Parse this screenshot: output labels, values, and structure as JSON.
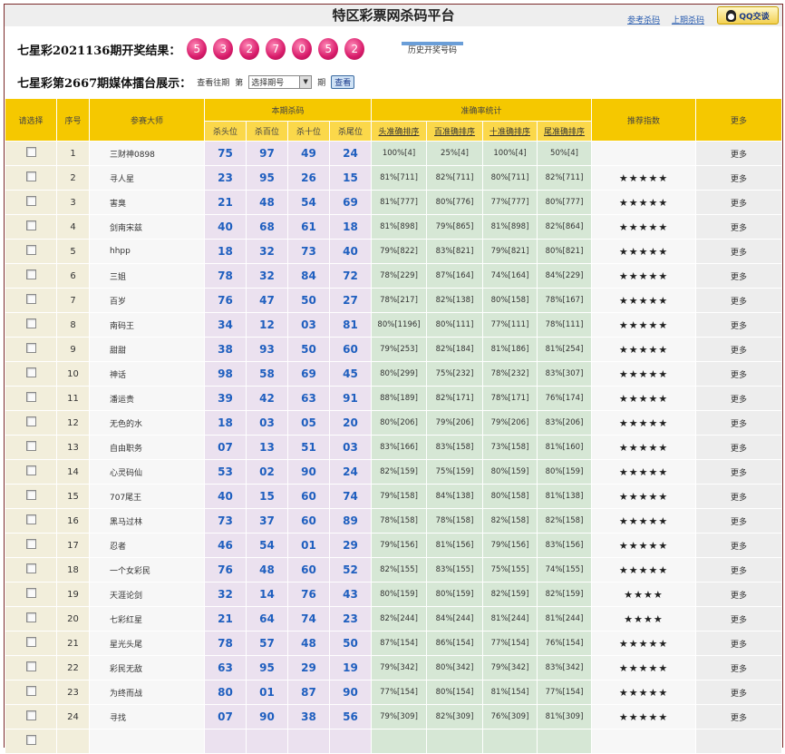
{
  "header": {
    "title": "特区彩票网杀码平台",
    "links": [
      "参考杀码",
      "上期杀码"
    ],
    "qq_label": "QQ交谈"
  },
  "result": {
    "label": "七星彩2021136期开奖结果：",
    "balls": [
      "5",
      "3",
      "2",
      "7",
      "0",
      "5",
      "2"
    ],
    "history_label": "历史开奖号码"
  },
  "selector": {
    "label": "七星彩第2667期媒体擂台展示：",
    "view_past": "查看往期",
    "di": "第",
    "select_value": "选择期号",
    "qi": "期",
    "query_button": "查看"
  },
  "table": {
    "group_headers": {
      "check": "请选择",
      "no": "序号",
      "master": "参赛大师",
      "kill": "本期杀码",
      "acc": "准确率统计",
      "rec": "推荐指数",
      "more": "更多"
    },
    "sub_headers": [
      "杀头位",
      "杀百位",
      "杀十位",
      "杀尾位",
      "头准确排序",
      "百准确排序",
      "十准确排序",
      "尾准确排序"
    ],
    "rows": [
      {
        "no": "1",
        "name": "三财神0898",
        "k": [
          "75",
          "97",
          "49",
          "24"
        ],
        "s": [
          "100%[4]",
          "25%[4]",
          "100%[4]",
          "50%[4]"
        ],
        "stars": "",
        "more": "更多"
      },
      {
        "no": "2",
        "name": "寻人星",
        "k": [
          "23",
          "95",
          "26",
          "15"
        ],
        "s": [
          "81%[711]",
          "82%[711]",
          "80%[711]",
          "82%[711]"
        ],
        "stars": "★★★★★",
        "more": "更多"
      },
      {
        "no": "3",
        "name": "害臭",
        "k": [
          "21",
          "48",
          "54",
          "69"
        ],
        "s": [
          "81%[777]",
          "80%[776]",
          "77%[777]",
          "80%[777]"
        ],
        "stars": "★★★★★",
        "more": "更多"
      },
      {
        "no": "4",
        "name": "剑南宋兹",
        "k": [
          "40",
          "68",
          "61",
          "18"
        ],
        "s": [
          "81%[898]",
          "79%[865]",
          "81%[898]",
          "82%[864]"
        ],
        "stars": "★★★★★",
        "more": "更多"
      },
      {
        "no": "5",
        "name": "hhpp",
        "k": [
          "18",
          "32",
          "73",
          "40"
        ],
        "s": [
          "79%[822]",
          "83%[821]",
          "79%[821]",
          "80%[821]"
        ],
        "stars": "★★★★★",
        "more": "更多"
      },
      {
        "no": "6",
        "name": "三姐",
        "k": [
          "78",
          "32",
          "84",
          "72"
        ],
        "s": [
          "78%[229]",
          "87%[164]",
          "74%[164]",
          "84%[229]"
        ],
        "stars": "★★★★★",
        "more": "更多"
      },
      {
        "no": "7",
        "name": "百岁",
        "k": [
          "76",
          "47",
          "50",
          "27"
        ],
        "s": [
          "78%[217]",
          "82%[138]",
          "80%[158]",
          "78%[167]"
        ],
        "stars": "★★★★★",
        "more": "更多"
      },
      {
        "no": "8",
        "name": "南码王",
        "k": [
          "34",
          "12",
          "03",
          "81"
        ],
        "s": [
          "80%[1196]",
          "80%[111]",
          "77%[111]",
          "78%[111]"
        ],
        "stars": "★★★★★",
        "more": "更多"
      },
      {
        "no": "9",
        "name": "甜甜",
        "k": [
          "38",
          "93",
          "50",
          "60"
        ],
        "s": [
          "79%[253]",
          "82%[184]",
          "81%[186]",
          "81%[254]"
        ],
        "stars": "★★★★★",
        "more": "更多"
      },
      {
        "no": "10",
        "name": "神话",
        "k": [
          "98",
          "58",
          "69",
          "45"
        ],
        "s": [
          "80%[299]",
          "75%[232]",
          "78%[232]",
          "83%[307]"
        ],
        "stars": "★★★★★",
        "more": "更多"
      },
      {
        "no": "11",
        "name": "潘运贵",
        "k": [
          "39",
          "42",
          "63",
          "91"
        ],
        "s": [
          "88%[189]",
          "82%[171]",
          "78%[171]",
          "76%[174]"
        ],
        "stars": "★★★★★",
        "more": "更多"
      },
      {
        "no": "12",
        "name": "无色的水",
        "k": [
          "18",
          "03",
          "05",
          "20"
        ],
        "s": [
          "80%[206]",
          "79%[206]",
          "79%[206]",
          "83%[206]"
        ],
        "stars": "★★★★★",
        "more": "更多"
      },
      {
        "no": "13",
        "name": "自由职务",
        "k": [
          "07",
          "13",
          "51",
          "03"
        ],
        "s": [
          "83%[166]",
          "83%[158]",
          "73%[158]",
          "81%[160]"
        ],
        "stars": "★★★★★",
        "more": "更多"
      },
      {
        "no": "14",
        "name": "心灵码仙",
        "k": [
          "53",
          "02",
          "90",
          "24"
        ],
        "s": [
          "82%[159]",
          "75%[159]",
          "80%[159]",
          "80%[159]"
        ],
        "stars": "★★★★★",
        "more": "更多"
      },
      {
        "no": "15",
        "name": "707尾王",
        "k": [
          "40",
          "15",
          "60",
          "74"
        ],
        "s": [
          "79%[158]",
          "84%[138]",
          "80%[158]",
          "81%[138]"
        ],
        "stars": "★★★★★",
        "more": "更多"
      },
      {
        "no": "16",
        "name": "黑马过林",
        "k": [
          "73",
          "37",
          "60",
          "89"
        ],
        "s": [
          "78%[158]",
          "78%[158]",
          "82%[158]",
          "82%[158]"
        ],
        "stars": "★★★★★",
        "more": "更多"
      },
      {
        "no": "17",
        "name": "忍者",
        "k": [
          "46",
          "54",
          "01",
          "29"
        ],
        "s": [
          "79%[156]",
          "81%[156]",
          "79%[156]",
          "83%[156]"
        ],
        "stars": "★★★★★",
        "more": "更多"
      },
      {
        "no": "18",
        "name": "一个女彩民",
        "k": [
          "76",
          "48",
          "60",
          "52"
        ],
        "s": [
          "82%[155]",
          "83%[155]",
          "75%[155]",
          "74%[155]"
        ],
        "stars": "★★★★★",
        "more": "更多"
      },
      {
        "no": "19",
        "name": "天涯论剑",
        "k": [
          "32",
          "14",
          "76",
          "43"
        ],
        "s": [
          "80%[159]",
          "80%[159]",
          "82%[159]",
          "82%[159]"
        ],
        "stars": "★★★★",
        "more": "更多"
      },
      {
        "no": "20",
        "name": "七彩红星",
        "k": [
          "21",
          "64",
          "74",
          "23"
        ],
        "s": [
          "82%[244]",
          "84%[244]",
          "81%[244]",
          "81%[244]"
        ],
        "stars": "★★★★",
        "more": "更多"
      },
      {
        "no": "21",
        "name": "星光头尾",
        "k": [
          "78",
          "57",
          "48",
          "50"
        ],
        "s": [
          "87%[154]",
          "86%[154]",
          "77%[154]",
          "76%[154]"
        ],
        "stars": "★★★★★",
        "more": "更多"
      },
      {
        "no": "22",
        "name": "彩民无敌",
        "k": [
          "63",
          "95",
          "29",
          "19"
        ],
        "s": [
          "79%[342]",
          "80%[342]",
          "79%[342]",
          "83%[342]"
        ],
        "stars": "★★★★★",
        "more": "更多"
      },
      {
        "no": "23",
        "name": "为终而战",
        "k": [
          "80",
          "01",
          "87",
          "90"
        ],
        "s": [
          "77%[154]",
          "80%[154]",
          "81%[154]",
          "77%[154]"
        ],
        "stars": "★★★★★",
        "more": "更多"
      },
      {
        "no": "24",
        "name": "寻找",
        "k": [
          "07",
          "90",
          "38",
          "56"
        ],
        "s": [
          "79%[309]",
          "82%[309]",
          "76%[309]",
          "81%[309]"
        ],
        "stars": "★★★★★",
        "more": "更多"
      }
    ]
  }
}
